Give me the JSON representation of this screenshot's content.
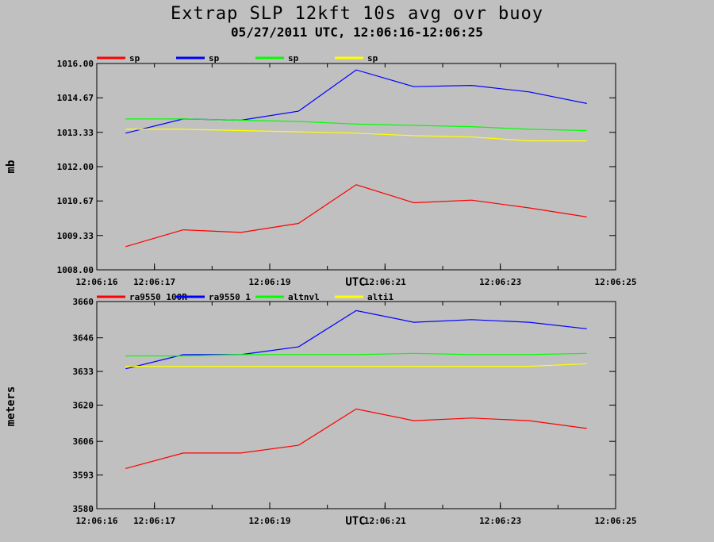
{
  "title": "Extrap SLP 12kft 10s avg ovr buoy",
  "subtitle": "05/27/2011  UTC, 12:06:16-12:06:25",
  "colors": {
    "background": "#c0c0c0",
    "red": "#ff0000",
    "blue": "#0000ff",
    "green": "#00ff00",
    "yellow": "#ffff00"
  },
  "chart_data": [
    {
      "type": "line",
      "title": "",
      "xlabel": "UTC",
      "ylabel": "mb",
      "ylim": [
        1008.0,
        1016.0
      ],
      "yticks": [
        "1008.00",
        "1009.33",
        "1010.67",
        "1012.00",
        "1013.33",
        "1014.67",
        "1016.00"
      ],
      "x_range": [
        "12:06:16",
        "12:06:25"
      ],
      "x": [
        "12:06:16.5",
        "12:06:17.5",
        "12:06:18.5",
        "12:06:19.5",
        "12:06:20.5",
        "12:06:21.5",
        "12:06:22.5",
        "12:06:23.5",
        "12:06:24.5"
      ],
      "xticks": [
        "12:06:16",
        "12:06:17",
        "12:06:19",
        "12:06:21",
        "12:06:23",
        "12:06:25"
      ],
      "grid": false,
      "legend": "top",
      "series": [
        {
          "name": "sp",
          "color": "#ff0000",
          "values": [
            1008.9,
            1009.55,
            1009.45,
            1009.8,
            1011.3,
            1010.6,
            1010.7,
            1010.4,
            1010.05
          ]
        },
        {
          "name": "sp",
          "color": "#0000ff",
          "values": [
            1013.3,
            1013.85,
            1013.8,
            1014.15,
            1015.75,
            1015.1,
            1015.15,
            1014.9,
            1014.45
          ]
        },
        {
          "name": "sp",
          "color": "#00ff00",
          "values": [
            1013.85,
            1013.85,
            1013.8,
            1013.75,
            1013.65,
            1013.6,
            1013.55,
            1013.45,
            1013.4
          ]
        },
        {
          "name": "sp",
          "color": "#ffff00",
          "values": [
            1013.45,
            1013.45,
            1013.4,
            1013.35,
            1013.3,
            1013.2,
            1013.15,
            1013.0,
            1013.0
          ]
        }
      ]
    },
    {
      "type": "line",
      "title": "",
      "xlabel": "UTC",
      "ylabel": "meters",
      "ylim": [
        3580,
        3660
      ],
      "yticks": [
        "3580",
        "3593",
        "3606",
        "3620",
        "3633",
        "3646",
        "3660"
      ],
      "x_range": [
        "12:06:16",
        "12:06:25"
      ],
      "x": [
        "12:06:16.5",
        "12:06:17.5",
        "12:06:18.5",
        "12:06:19.5",
        "12:06:20.5",
        "12:06:21.5",
        "12:06:22.5",
        "12:06:23.5",
        "12:06:24.5"
      ],
      "xticks": [
        "12:06:16",
        "12:06:17",
        "12:06:19",
        "12:06:21",
        "12:06:23",
        "12:06:25"
      ],
      "grid": false,
      "legend": "top",
      "series": [
        {
          "name": "ra9550_100R",
          "color": "#ff0000",
          "values": [
            3595.5,
            3601.5,
            3601.5,
            3604.5,
            3618.5,
            3614.0,
            3615.0,
            3614.0,
            3611.0
          ]
        },
        {
          "name": "ra9550_1",
          "color": "#0000ff",
          "values": [
            3634.0,
            3639.5,
            3639.5,
            3642.5,
            3656.5,
            3652.0,
            3653.0,
            3652.0,
            3649.5
          ]
        },
        {
          "name": "altnvl",
          "color": "#00ff00",
          "values": [
            3639.0,
            3639.0,
            3639.5,
            3639.5,
            3639.5,
            3640.0,
            3639.5,
            3639.5,
            3640.0
          ]
        },
        {
          "name": "alti1",
          "color": "#ffff00",
          "values": [
            3635.0,
            3635.0,
            3635.0,
            3635.0,
            3635.0,
            3635.0,
            3635.0,
            3635.0,
            3636.0
          ]
        }
      ]
    }
  ]
}
